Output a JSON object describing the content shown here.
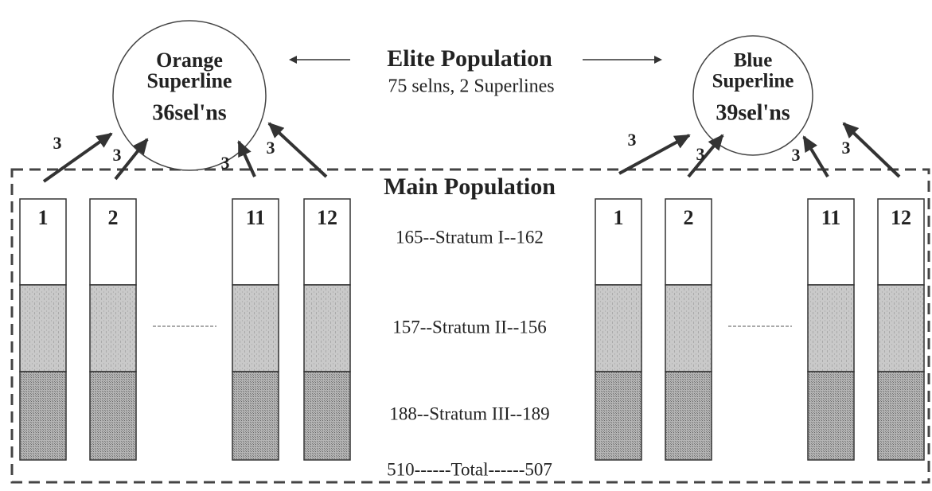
{
  "elite": {
    "title": "Elite Population",
    "subtitle": "75 selns, 2 Superlines"
  },
  "superlines": [
    {
      "name": [
        "Orange",
        "Superline"
      ],
      "selections": "36sel'ns",
      "arrows": [
        "3",
        "3",
        "3",
        "3"
      ]
    },
    {
      "name": [
        "Blue",
        "Superline"
      ],
      "selections": "39sel'ns",
      "arrows": [
        "3",
        "3",
        "3",
        "3"
      ]
    }
  ],
  "main": {
    "title": "Main Population",
    "left_columns": [
      "1",
      "2",
      "11",
      "12"
    ],
    "right_columns": [
      "1",
      "2",
      "11",
      "12"
    ],
    "strata": [
      "165--Stratum I--162",
      "157--Stratum II--156",
      "188--Stratum III--189"
    ],
    "total": "510------Total------507"
  }
}
